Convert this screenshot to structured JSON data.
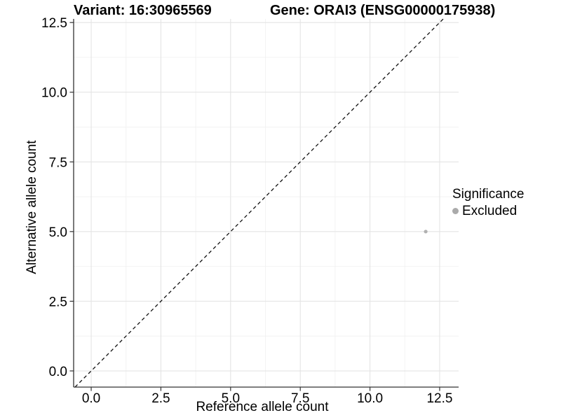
{
  "header": {
    "variant_title": "Variant: 16:30965569",
    "gene_title": "Gene: ORAI3 (ENSG00000175938)"
  },
  "chart_data": {
    "type": "scatter",
    "xlabel": "Reference allele count",
    "ylabel": "Alternative allele count",
    "xlim": [
      -0.63,
      13.18
    ],
    "ylim": [
      -0.58,
      12.63
    ],
    "x_tick_values": [
      0,
      2.5,
      5,
      7.5,
      10,
      12.5
    ],
    "x_tick_labels": [
      "0.0",
      "2.5",
      "5.0",
      "7.5",
      "10.0",
      "12.5"
    ],
    "y_tick_values": [
      0,
      2.5,
      5,
      7.5,
      10,
      12.5
    ],
    "y_tick_labels": [
      "0.0",
      "2.5",
      "5.0",
      "7.5",
      "10.0",
      "12.5"
    ],
    "x_minor_ticks": [
      1.25,
      3.75,
      6.25,
      8.75,
      11.25
    ],
    "y_minor_ticks": [
      1.25,
      3.75,
      6.25,
      8.75,
      11.25
    ],
    "grid": true,
    "identity_line": {
      "slope": 1,
      "intercept": 0,
      "style": "dashed"
    },
    "points": [
      {
        "x": 12,
        "y": 5,
        "significance": "Excluded"
      }
    ],
    "series_colors": {
      "Excluded": "#b1b1b1"
    },
    "legend": {
      "title": "Significance",
      "position": "right",
      "items": [
        {
          "label": "Excluded",
          "color": "#aaaaaa"
        }
      ]
    }
  },
  "colors": {
    "background": "#ffffff",
    "grid_major": "#e4e4e4",
    "grid_minor": "#f2f2f2",
    "axis_line": "#333333",
    "tick_mark": "#333333",
    "tick_text": "#000000",
    "identity_line": "#111111"
  }
}
